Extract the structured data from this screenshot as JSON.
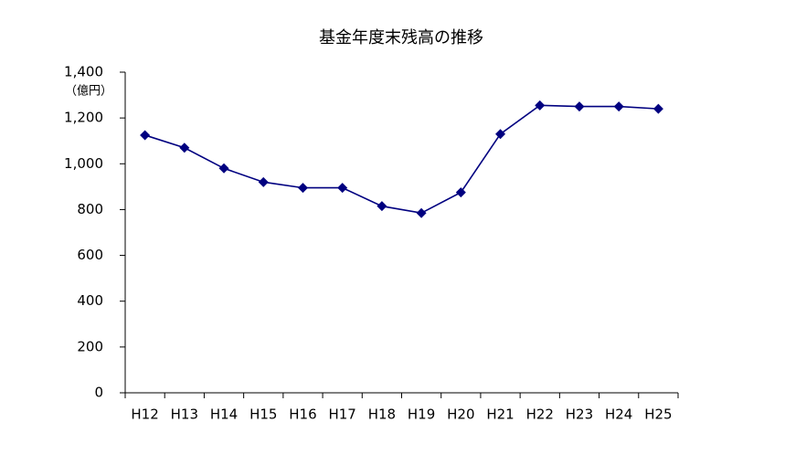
{
  "chart_data": {
    "type": "line",
    "title": "基金年度末残高の推移",
    "y_unit_label": "（億円）",
    "categories": [
      "H12",
      "H13",
      "H14",
      "H15",
      "H16",
      "H17",
      "H18",
      "H19",
      "H20",
      "H21",
      "H22",
      "H23",
      "H24",
      "H25"
    ],
    "series": [
      {
        "color": "#000080",
        "values": [
          1125,
          1070,
          980,
          920,
          895,
          895,
          815,
          785,
          875,
          1130,
          1255,
          1250,
          1250,
          1240
        ]
      }
    ],
    "ylim": [
      0,
      1400
    ],
    "yticks": [
      0,
      200,
      400,
      600,
      800,
      {
        "value": 1000,
        "label": "1,000"
      },
      {
        "value": 1200,
        "label": "1,200"
      },
      {
        "value": 1400,
        "label": "1,400"
      }
    ],
    "grid": false
  }
}
